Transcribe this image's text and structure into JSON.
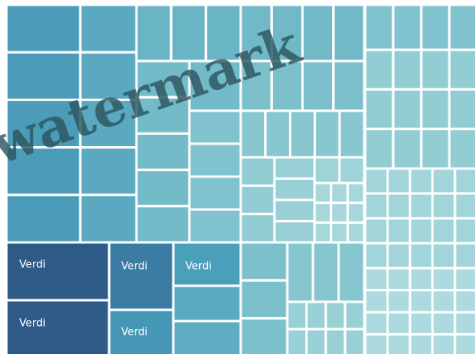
{
  "tiles": {
    "labels": [
      "Verdi",
      "Verdi",
      "Verdi",
      "Verdi",
      "Verdi"
    ]
  },
  "watermark": "watermark"
}
